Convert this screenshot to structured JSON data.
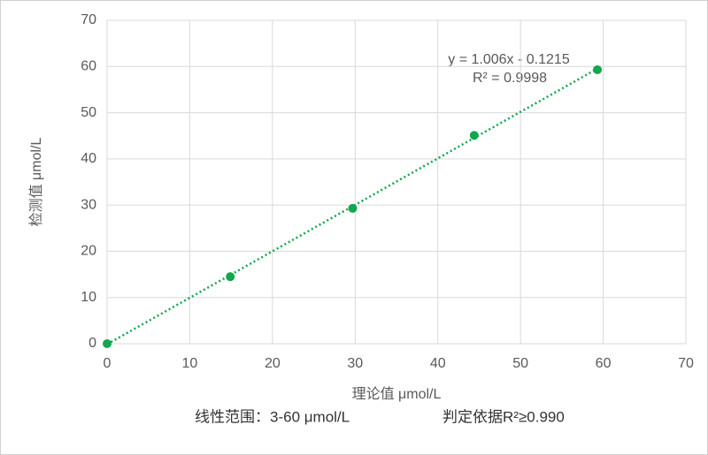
{
  "chart_data": {
    "type": "scatter",
    "x_label": "理论值 μmol/L",
    "y_label": "检测值 μmol/L",
    "series": [
      {
        "name": "检测值",
        "color": "#12a64f",
        "x": [
          0,
          14.9,
          29.7,
          44.4,
          59.3
        ],
        "values": [
          0,
          14.5,
          29.3,
          45.1,
          59.3
        ]
      }
    ],
    "trendline": {
      "slope": 1.006,
      "intercept": -0.1215,
      "color": "#12a64f"
    },
    "annotations": [
      "y = 1.006x - 0.1215",
      "R² = 0.9998"
    ],
    "footnotes": [
      "线性范围：3-60 μmol/L",
      "判定依据R²≥0.990"
    ],
    "xlim": [
      0,
      70
    ],
    "xticks": [
      0,
      10,
      20,
      30,
      40,
      50,
      60,
      70
    ],
    "ylim": [
      0,
      70
    ],
    "yticks": [
      0,
      10,
      20,
      30,
      40,
      50,
      60,
      70
    ],
    "grid": true
  }
}
